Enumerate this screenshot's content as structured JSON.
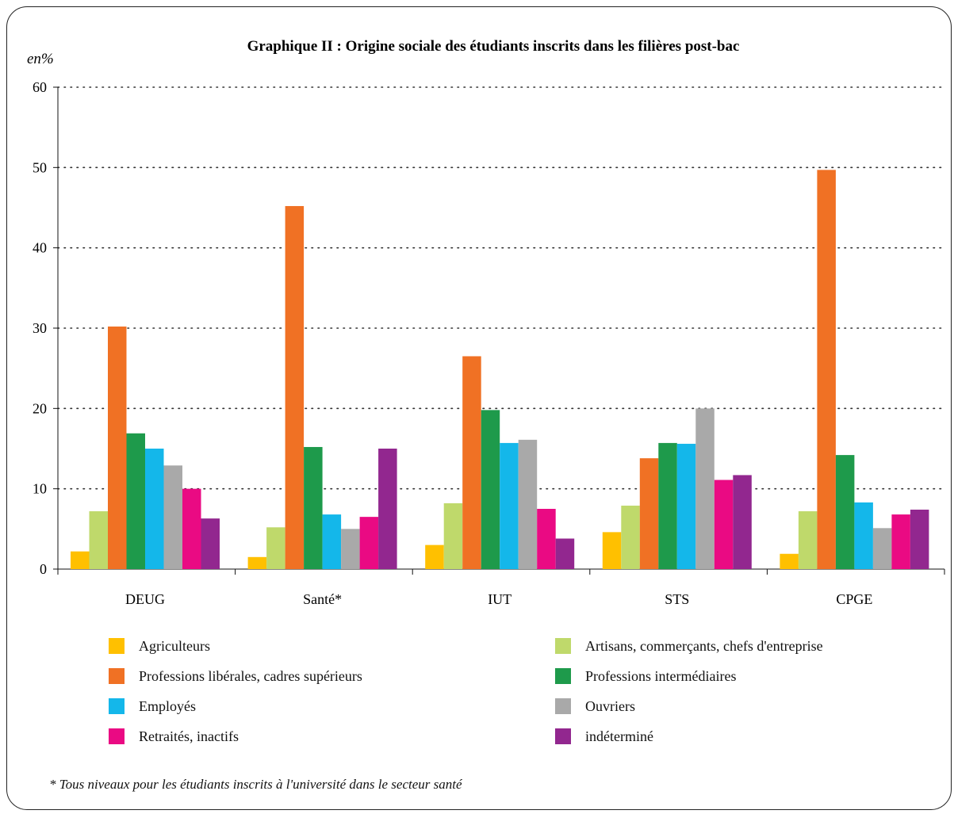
{
  "chart_data": {
    "type": "bar",
    "title": "Graphique II : Origine sociale des étudiants inscrits dans les filières post-bac",
    "ylabel": "en%",
    "ylim": [
      0,
      60
    ],
    "yticks": [
      0,
      10,
      20,
      30,
      40,
      50,
      60
    ],
    "grid": "horizontal dotted",
    "categories": [
      "DEUG",
      "Santé*",
      "IUT",
      "STS",
      "CPGE"
    ],
    "series": [
      {
        "name": "Agriculteurs",
        "color": "#ffc000",
        "values": [
          2.2,
          1.5,
          3.0,
          4.6,
          1.9
        ]
      },
      {
        "name": "Artisans, commerçants, chefs d'entreprise",
        "color": "#bfd96b",
        "values": [
          7.2,
          5.2,
          8.2,
          7.9,
          7.2
        ]
      },
      {
        "name": "Professions libérales, cadres supérieurs",
        "color": "#f07124",
        "values": [
          30.2,
          45.2,
          26.5,
          13.8,
          49.7
        ]
      },
      {
        "name": "Professions intermédiaires",
        "color": "#1e9a4b",
        "values": [
          16.9,
          15.2,
          19.8,
          15.7,
          14.2
        ]
      },
      {
        "name": "Employés",
        "color": "#14b7ea",
        "values": [
          15.0,
          6.8,
          15.7,
          15.6,
          8.3
        ]
      },
      {
        "name": "Ouvriers",
        "color": "#a9a9a9",
        "values": [
          12.9,
          5.0,
          16.1,
          20.0,
          5.1
        ]
      },
      {
        "name": "Retraités, inactifs",
        "color": "#ea0a83",
        "values": [
          10.0,
          6.5,
          7.5,
          11.1,
          6.8
        ]
      },
      {
        "name": "indéterminé",
        "color": "#92278f",
        "values": [
          6.3,
          15.0,
          3.8,
          11.7,
          7.4
        ]
      }
    ],
    "legend_position": "bottom",
    "footnote": "* Tous niveaux pour les étudiants inscrits à l'université dans le secteur santé"
  }
}
